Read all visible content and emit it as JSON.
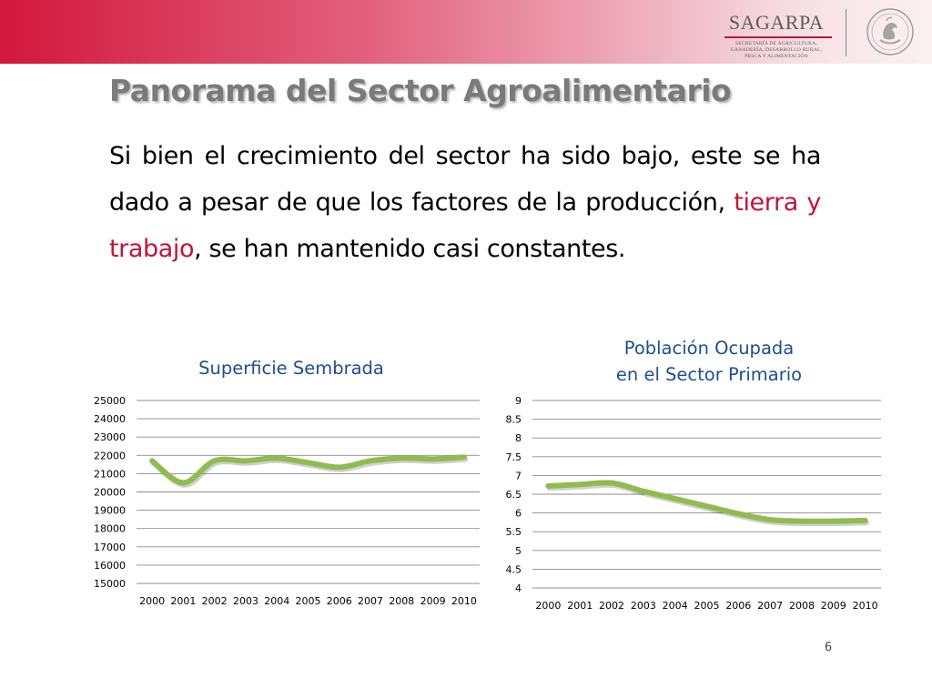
{
  "header": {
    "logo_name": "SAGARPA",
    "logo_lines": [
      "SECRETARÍA DE AGRICULTURA,",
      "GANADERÍA, DESARROLLO RURAL,",
      "PESCA Y ALIMENTACIÓN"
    ],
    "seal_icon": "mexican-coat-of-arms-seal",
    "banner_colors": [
      "#d2173c",
      "#f7e0e6"
    ]
  },
  "slide": {
    "title": "Panorama del Sector Agroalimentario",
    "body": {
      "before": "Si bien el crecimiento del sector ha sido bajo, este se ha dado a pesar de que los factores de la producción, ",
      "highlight": "tierra y trabajo",
      "after": ", se han mantenido casi constantes."
    },
    "highlight_color": "#c0143c",
    "page_number": "6"
  },
  "chart_data": [
    {
      "type": "line",
      "title": "Superficie Sembrada",
      "categories": [
        "2000",
        "2001",
        "2002",
        "2003",
        "2004",
        "2005",
        "2006",
        "2007",
        "2008",
        "2009",
        "2010"
      ],
      "values": [
        21700,
        20500,
        21700,
        21700,
        21850,
        21600,
        21350,
        21700,
        21850,
        21800,
        21900
      ],
      "yticks": [
        "25000",
        "24000",
        "23000",
        "22000",
        "21000",
        "20000",
        "19000",
        "18000",
        "17000",
        "16000",
        "15000"
      ],
      "ylim": [
        15000,
        25000
      ],
      "grid": true,
      "line_color": "#8fbc4f",
      "title_color": "#1f4e8c"
    },
    {
      "type": "line",
      "title": "Población Ocupada en el Sector Primario",
      "title_lines": [
        "Población Ocupada",
        "en el Sector Primario"
      ],
      "categories": [
        "2000",
        "2001",
        "2002",
        "2003",
        "2004",
        "2005",
        "2006",
        "2007",
        "2008",
        "2009",
        "2010"
      ],
      "values": [
        6.72,
        6.76,
        6.8,
        6.58,
        6.38,
        6.18,
        5.98,
        5.82,
        5.78,
        5.78,
        5.8
      ],
      "yticks": [
        "9",
        "8.5",
        "8",
        "7.5",
        "7",
        "6.5",
        "6",
        "5.5",
        "5",
        "4.5",
        "4"
      ],
      "ylim": [
        4,
        9
      ],
      "grid": true,
      "line_color": "#8fbc4f",
      "title_color": "#1f4e8c"
    }
  ]
}
